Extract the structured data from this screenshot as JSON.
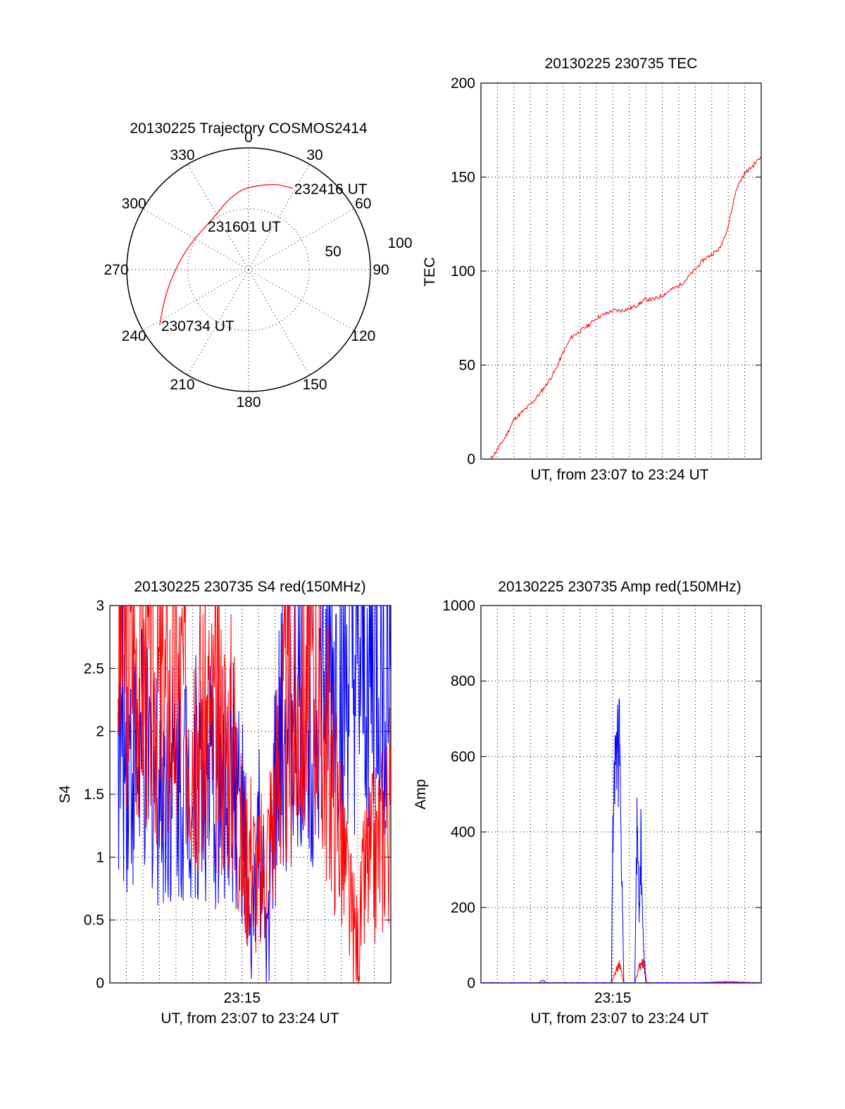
{
  "chart_data": [
    {
      "type": "polar",
      "title": "20130225 Trajectory COSMOS2414",
      "azimuth_labels": [
        "0",
        "30",
        "60",
        "90",
        "120",
        "150",
        "180",
        "210",
        "240",
        "270",
        "300",
        "330"
      ],
      "radius_labels": [
        "50",
        "100"
      ],
      "rlim": [
        0,
        100
      ],
      "grid": true,
      "series": [
        {
          "color": "#ff0000",
          "points": [
            {
              "az": 238,
              "r": 86
            },
            {
              "az": 245,
              "r": 78
            },
            {
              "az": 254,
              "r": 70
            },
            {
              "az": 266,
              "r": 62
            },
            {
              "az": 282,
              "r": 55
            },
            {
              "az": 299,
              "r": 51
            },
            {
              "az": 316,
              "r": 50
            },
            {
              "az": 331,
              "r": 53
            },
            {
              "az": 345,
              "r": 60
            },
            {
              "az": 359,
              "r": 67
            },
            {
              "az": 17,
              "r": 73
            },
            {
              "az": 28.5,
              "r": 76
            }
          ]
        }
      ],
      "annotations": [
        {
          "text": "232416 UT",
          "az": 28.5,
          "r": 76
        },
        {
          "text": "231601 UT",
          "az": 316,
          "r": 50
        },
        {
          "text": "230734 UT",
          "az": 238,
          "r": 86
        }
      ]
    },
    {
      "type": "line",
      "title": "20130225 230735 TEC",
      "xlabel": "UT, from 23:07 to 23:24 UT",
      "ylabel": "TEC",
      "xlim": [
        "23:07:00",
        "23:24:00"
      ],
      "ylim": [
        0,
        200
      ],
      "yticks": [
        "0",
        "50",
        "100",
        "150",
        "200"
      ],
      "grid": true,
      "series": [
        {
          "color": "#ff0000",
          "x": [
            "23:07:35",
            "23:08:00",
            "23:08:30",
            "23:09:00",
            "23:09:30",
            "23:10:00",
            "23:10:30",
            "23:11:00",
            "23:11:30",
            "23:12:00",
            "23:12:30",
            "23:13:00",
            "23:13:30",
            "23:14:00",
            "23:14:30",
            "23:15:00",
            "23:15:30",
            "23:16:00",
            "23:16:30",
            "23:17:00",
            "23:17:30",
            "23:18:00",
            "23:18:30",
            "23:19:00",
            "23:19:30",
            "23:20:00",
            "23:20:30",
            "23:21:00",
            "23:21:30",
            "23:22:00",
            "23:22:30",
            "23:23:00",
            "23:23:30",
            "23:24:00"
          ],
          "y": [
            0,
            5,
            12,
            21,
            25,
            29,
            34,
            40,
            47,
            57,
            65,
            68,
            71,
            75,
            77,
            79,
            79,
            80,
            82,
            85,
            85,
            87,
            90,
            92,
            96,
            101,
            106,
            109,
            112,
            124,
            144,
            152,
            156,
            161
          ]
        }
      ]
    },
    {
      "type": "line",
      "title": "20130225 230735 S4 red(150MHz)",
      "xlabel": "UT, from 23:07 to 23:24 UT",
      "ylabel": "S4",
      "xlim": [
        "23:07:00",
        "23:24:00"
      ],
      "ylim": [
        0,
        3
      ],
      "xticks": [
        "23:15"
      ],
      "yticks": [
        "0",
        "0.5",
        "1",
        "1.5",
        "2",
        "2.5",
        "3"
      ],
      "grid": true,
      "series": [
        {
          "color": "#ff0000",
          "x": [
            "23:07:30",
            "23:08:30",
            "23:09:30",
            "23:10:30",
            "23:11:30",
            "23:12:30",
            "23:13:30",
            "23:14:30",
            "23:15:00",
            "23:15:30",
            "23:16:00",
            "23:16:30",
            "23:17:00",
            "23:17:30",
            "23:18:30",
            "23:19:30",
            "23:20:30",
            "23:21:00",
            "23:21:30",
            "23:22:00",
            "23:22:30",
            "23:23:00",
            "23:23:30",
            "23:24:00"
          ],
          "y": [
            2.7,
            2.6,
            2.4,
            2.2,
            2.3,
            2.1,
            2.0,
            1.9,
            1.0,
            1.1,
            0.8,
            1.0,
            1.5,
            2.0,
            2.2,
            2.4,
            1.6,
            1.2,
            0.6,
            0.3,
            0.9,
            1.0,
            1.2,
            1.4
          ]
        },
        {
          "color": "#0000ff",
          "x": [
            "23:07:30",
            "23:08:30",
            "23:09:30",
            "23:10:30",
            "23:11:30",
            "23:12:30",
            "23:13:30",
            "23:14:30",
            "23:15:00",
            "23:15:30",
            "23:16:00",
            "23:16:30",
            "23:17:00",
            "23:17:30",
            "23:18:30",
            "23:19:30",
            "23:20:30",
            "23:21:00",
            "23:21:30",
            "23:22:00",
            "23:22:30",
            "23:23:00",
            "23:23:30",
            "23:24:00"
          ],
          "y": [
            1.9,
            1.8,
            1.7,
            1.6,
            1.7,
            1.6,
            1.5,
            1.6,
            1.3,
            0.2,
            1.2,
            0.2,
            1.5,
            2.0,
            2.1,
            2.2,
            2.3,
            2.2,
            2.3,
            2.2,
            2.3,
            2.4,
            2.3,
            2.5
          ]
        }
      ]
    },
    {
      "type": "line",
      "title": "20130225 230735 Amp red(150MHz)",
      "xlabel": "UT, from 23:07 to 23:24 UT",
      "ylabel": "Amp",
      "xlim": [
        "23:07:00",
        "23:24:00"
      ],
      "ylim": [
        0,
        1000
      ],
      "xticks": [
        "23:15"
      ],
      "yticks": [
        "0",
        "200",
        "400",
        "600",
        "800",
        "1000"
      ],
      "grid": true,
      "series": [
        {
          "color": "#ff0000",
          "x": [
            "23:07:00",
            "23:10:30",
            "23:10:45",
            "23:11:00",
            "23:14:55",
            "23:15:10",
            "23:15:25",
            "23:15:40",
            "23:16:20",
            "23:16:35",
            "23:16:50",
            "23:17:05",
            "23:20:00",
            "23:22:00",
            "23:24:00"
          ],
          "y": [
            0,
            0,
            8,
            0,
            0,
            30,
            50,
            0,
            0,
            40,
            55,
            0,
            0,
            3,
            0
          ]
        },
        {
          "color": "#0000ff",
          "x": [
            "23:07:00",
            "23:14:55",
            "23:15:00",
            "23:15:08",
            "23:15:15",
            "23:15:22",
            "23:15:30",
            "23:15:40",
            "23:16:20",
            "23:16:28",
            "23:16:35",
            "23:16:42",
            "23:16:50",
            "23:17:00",
            "23:24:00"
          ],
          "y": [
            0,
            0,
            420,
            620,
            540,
            675,
            380,
            0,
            0,
            450,
            180,
            380,
            120,
            0,
            0
          ]
        }
      ]
    }
  ]
}
